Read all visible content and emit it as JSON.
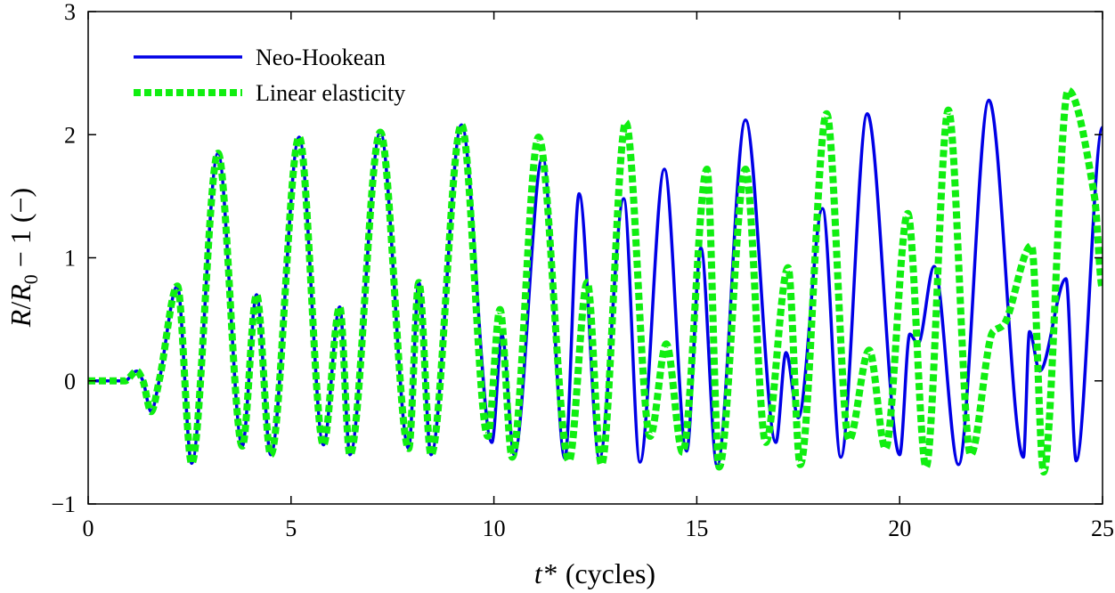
{
  "chart_data": {
    "type": "line",
    "title": "",
    "xlabel": {
      "main": "t*",
      "unit": "(cycles)"
    },
    "ylabel": {
      "R": "R",
      "slash": "/",
      "R0": "R",
      "sub": "0",
      "rest": " − 1 (−)"
    },
    "xlim": [
      0,
      25
    ],
    "ylim": [
      -1,
      3
    ],
    "xticks": [
      0,
      5,
      10,
      15,
      20,
      25
    ],
    "xtick_labels": [
      "0",
      "5",
      "10",
      "15",
      "20",
      "25"
    ],
    "yticks": [
      -1,
      0,
      1,
      2,
      3
    ],
    "ytick_labels": [
      "−1",
      "0",
      "1",
      "2",
      "3"
    ],
    "grid": false,
    "legend_position": "top-left",
    "series": [
      {
        "name": "Neo-Hookean",
        "color": "#0000e6",
        "style": "solid",
        "x": [
          0,
          0.9,
          1.2,
          1.35,
          1.55,
          1.75,
          2.2,
          2.55,
          3.2,
          3.8,
          4.15,
          4.5,
          5.2,
          5.8,
          6.2,
          6.45,
          7.2,
          7.9,
          8.15,
          8.45,
          9.2,
          9.95,
          10.2,
          10.5,
          11.2,
          11.75,
          12.1,
          12.6,
          13.2,
          13.6,
          14.2,
          14.75,
          15.1,
          15.5,
          16.2,
          16.95,
          17.2,
          17.5,
          18.1,
          18.55,
          19.2,
          20.0,
          20.25,
          20.45,
          20.85,
          21.45,
          22.2,
          23.05,
          23.2,
          23.45,
          24.1,
          24.35,
          25.0
        ],
        "y": [
          0.0,
          0.0,
          0.08,
          0.0,
          -0.25,
          0.0,
          0.77,
          -0.67,
          1.85,
          -0.53,
          0.7,
          -0.6,
          1.98,
          -0.52,
          0.6,
          -0.6,
          2.02,
          -0.55,
          0.8,
          -0.6,
          2.08,
          -0.5,
          0.37,
          -0.6,
          1.82,
          -0.63,
          1.52,
          -0.63,
          1.48,
          -0.66,
          1.72,
          -0.57,
          1.08,
          -0.69,
          2.12,
          -0.5,
          0.23,
          -0.3,
          1.4,
          -0.62,
          2.17,
          -0.6,
          0.38,
          0.3,
          0.93,
          -0.68,
          2.28,
          -0.62,
          0.4,
          0.08,
          0.83,
          -0.65,
          2.06
        ]
      },
      {
        "name": "Linear elasticity",
        "color": "#11ee11",
        "style": "dotted",
        "x": [
          0,
          0.9,
          1.2,
          1.35,
          1.55,
          1.75,
          2.2,
          2.55,
          3.2,
          3.8,
          4.15,
          4.5,
          5.2,
          5.8,
          6.2,
          6.45,
          7.2,
          7.9,
          8.15,
          8.45,
          9.2,
          9.85,
          10.15,
          10.45,
          11.1,
          11.85,
          12.3,
          12.65,
          13.25,
          13.85,
          14.25,
          14.65,
          15.25,
          15.55,
          16.2,
          16.7,
          17.25,
          17.55,
          18.2,
          18.75,
          19.25,
          19.65,
          20.2,
          20.65,
          21.2,
          21.75,
          22.3,
          22.55,
          23.25,
          23.55,
          24.15,
          24.8,
          25.0
        ],
        "y": [
          0.0,
          0.0,
          0.08,
          0.0,
          -0.25,
          0.0,
          0.77,
          -0.67,
          1.85,
          -0.53,
          0.7,
          -0.6,
          1.98,
          -0.52,
          0.6,
          -0.6,
          2.02,
          -0.55,
          0.8,
          -0.6,
          2.08,
          -0.45,
          0.58,
          -0.62,
          1.98,
          -0.65,
          0.8,
          -0.68,
          2.1,
          -0.45,
          0.3,
          -0.58,
          1.72,
          -0.7,
          1.72,
          -0.5,
          0.92,
          -0.68,
          2.17,
          -0.48,
          0.25,
          -0.55,
          1.36,
          -0.7,
          2.2,
          -0.6,
          0.4,
          0.45,
          1.1,
          -0.74,
          2.36,
          1.5,
          0.75
        ]
      }
    ]
  }
}
